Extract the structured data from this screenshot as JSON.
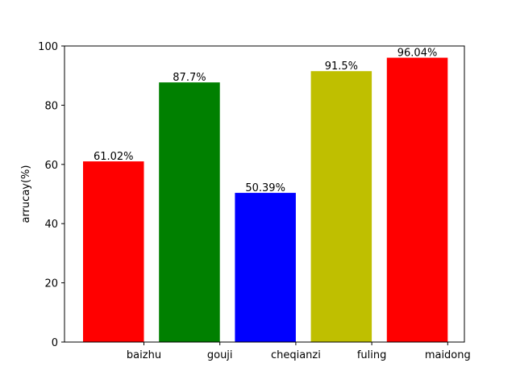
{
  "chart_data": {
    "type": "bar",
    "categories": [
      "baizhu",
      "gouji",
      "cheqianzi",
      "fuling",
      "maidong"
    ],
    "values": [
      61.02,
      87.7,
      50.39,
      91.5,
      96.04
    ],
    "data_labels": [
      "61.02%",
      "87.7%",
      "50.39%",
      "91.5%",
      "96.04%"
    ],
    "colors": [
      "#ff0000",
      "#008000",
      "#0000ff",
      "#bfbf00",
      "#ff0000"
    ],
    "title": "",
    "xlabel": "",
    "ylabel": "arrucay(%)",
    "ylim": [
      0,
      100
    ],
    "yticks": [
      0,
      20,
      40,
      60,
      80,
      100
    ],
    "grid": false,
    "legend": "none"
  }
}
